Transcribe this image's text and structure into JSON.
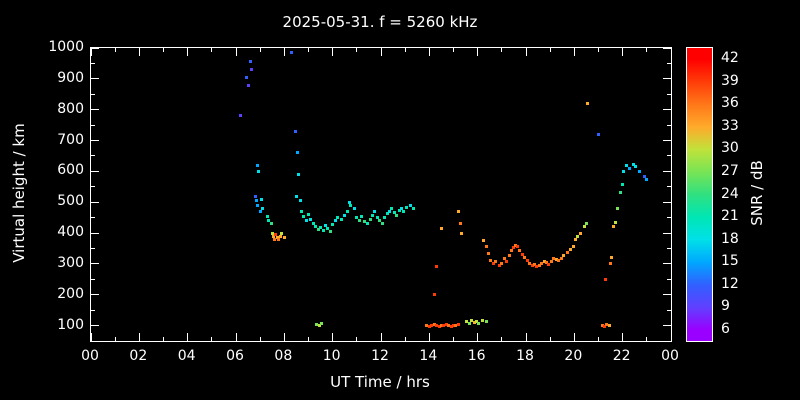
{
  "title": "2025-05-31. f = 5260 kHz",
  "chart_data": {
    "type": "scatter",
    "title": "2025-05-31. f = 5260 kHz",
    "xlabel": "UT Time / hrs",
    "ylabel": "Virtual height / km",
    "colorbar_label": "SNR / dB",
    "xlim": [
      0,
      24
    ],
    "ylim": [
      50,
      1000
    ],
    "grid": false,
    "background": "#000000",
    "xticks": {
      "values": [
        0,
        2,
        4,
        6,
        8,
        10,
        12,
        14,
        16,
        18,
        20,
        22,
        24
      ],
      "labels": [
        "00",
        "02",
        "04",
        "06",
        "08",
        "10",
        "12",
        "14",
        "16",
        "18",
        "20",
        "22",
        "00"
      ]
    },
    "yticks": {
      "values": [
        100,
        200,
        300,
        400,
        500,
        600,
        700,
        800,
        900,
        1000
      ],
      "labels": [
        "100",
        "200",
        "300",
        "400",
        "500",
        "600",
        "700",
        "800",
        "900",
        "1000"
      ]
    },
    "colorbar": {
      "range": [
        4.5,
        43.5
      ],
      "tick_values": [
        42,
        39,
        36,
        33,
        30,
        27,
        24,
        21,
        18,
        15,
        12,
        9,
        6
      ],
      "stops": {
        "6": "#9900ff",
        "9": "#6040ff",
        "12": "#3060ff",
        "15": "#00a8ff",
        "18": "#00e0e8",
        "21": "#00e6b4",
        "24": "#30e080",
        "27": "#78e455",
        "30": "#c0e23a",
        "33": "#ffaa2a",
        "36": "#ff7718",
        "39": "#ff3c08",
        "42": "#ff0000"
      }
    },
    "points": [
      [
        6.2,
        780,
        9
      ],
      [
        6.45,
        905,
        12
      ],
      [
        6.5,
        880,
        9
      ],
      [
        6.6,
        955,
        12
      ],
      [
        6.65,
        930,
        9
      ],
      [
        6.9,
        620,
        15
      ],
      [
        6.95,
        600,
        18
      ],
      [
        6.8,
        520,
        12
      ],
      [
        6.85,
        505,
        15
      ],
      [
        6.9,
        490,
        15
      ],
      [
        7.0,
        470,
        15
      ],
      [
        7.05,
        510,
        18
      ],
      [
        7.1,
        480,
        18
      ],
      [
        7.3,
        455,
        21
      ],
      [
        7.35,
        440,
        21
      ],
      [
        7.45,
        430,
        24
      ],
      [
        7.5,
        400,
        30
      ],
      [
        7.55,
        390,
        33
      ],
      [
        7.6,
        380,
        36
      ],
      [
        7.65,
        395,
        39
      ],
      [
        7.7,
        385,
        33
      ],
      [
        7.75,
        380,
        36
      ],
      [
        7.85,
        390,
        33
      ],
      [
        7.9,
        400,
        30
      ],
      [
        8.0,
        385,
        33
      ],
      [
        8.3,
        985,
        12
      ],
      [
        8.45,
        730,
        12
      ],
      [
        8.55,
        660,
        15
      ],
      [
        8.6,
        590,
        18
      ],
      [
        8.5,
        520,
        18
      ],
      [
        8.65,
        505,
        18
      ],
      [
        8.7,
        470,
        21
      ],
      [
        8.8,
        455,
        21
      ],
      [
        8.9,
        440,
        18
      ],
      [
        9.0,
        460,
        21
      ],
      [
        9.1,
        445,
        18
      ],
      [
        9.2,
        430,
        21
      ],
      [
        9.3,
        420,
        21
      ],
      [
        9.4,
        410,
        24
      ],
      [
        9.5,
        418,
        21
      ],
      [
        9.6,
        408,
        21
      ],
      [
        9.7,
        425,
        18
      ],
      [
        9.8,
        415,
        21
      ],
      [
        9.9,
        405,
        24
      ],
      [
        10.0,
        428,
        21
      ],
      [
        10.1,
        440,
        18
      ],
      [
        10.2,
        452,
        21
      ],
      [
        10.35,
        445,
        21
      ],
      [
        10.5,
        458,
        18
      ],
      [
        10.6,
        470,
        21
      ],
      [
        10.7,
        498,
        18
      ],
      [
        10.75,
        488,
        21
      ],
      [
        10.9,
        478,
        18
      ],
      [
        11.0,
        452,
        21
      ],
      [
        11.1,
        440,
        24
      ],
      [
        11.2,
        455,
        21
      ],
      [
        11.3,
        438,
        24
      ],
      [
        11.45,
        430,
        21
      ],
      [
        11.55,
        445,
        24
      ],
      [
        11.65,
        458,
        21
      ],
      [
        11.75,
        470,
        18
      ],
      [
        11.85,
        452,
        21
      ],
      [
        11.95,
        440,
        24
      ],
      [
        12.05,
        432,
        24
      ],
      [
        12.15,
        450,
        21
      ],
      [
        12.25,
        462,
        21
      ],
      [
        12.35,
        470,
        18
      ],
      [
        12.45,
        478,
        21
      ],
      [
        12.55,
        468,
        21
      ],
      [
        12.65,
        458,
        24
      ],
      [
        12.75,
        473,
        21
      ],
      [
        12.85,
        480,
        18
      ],
      [
        12.95,
        470,
        21
      ],
      [
        13.05,
        483,
        21
      ],
      [
        13.2,
        490,
        18
      ],
      [
        13.35,
        480,
        21
      ],
      [
        9.35,
        105,
        27
      ],
      [
        9.45,
        100,
        30
      ],
      [
        9.55,
        108,
        27
      ],
      [
        13.9,
        100,
        36
      ],
      [
        14.0,
        98,
        39
      ],
      [
        14.1,
        100,
        39
      ],
      [
        14.2,
        102,
        36
      ],
      [
        14.3,
        100,
        39
      ],
      [
        14.4,
        98,
        39
      ],
      [
        14.5,
        100,
        36
      ],
      [
        14.6,
        100,
        39
      ],
      [
        14.7,
        102,
        39
      ],
      [
        14.8,
        100,
        36
      ],
      [
        14.9,
        98,
        39
      ],
      [
        15.0,
        100,
        39
      ],
      [
        15.1,
        100,
        36
      ],
      [
        15.2,
        105,
        39
      ],
      [
        14.2,
        200,
        39
      ],
      [
        14.3,
        290,
        39
      ],
      [
        14.5,
        415,
        33
      ],
      [
        15.2,
        470,
        33
      ],
      [
        15.3,
        430,
        36
      ],
      [
        15.35,
        400,
        33
      ],
      [
        15.55,
        112,
        30
      ],
      [
        15.65,
        108,
        27
      ],
      [
        15.75,
        115,
        30
      ],
      [
        15.85,
        110,
        33
      ],
      [
        15.95,
        112,
        30
      ],
      [
        16.05,
        108,
        27
      ],
      [
        16.2,
        115,
        30
      ],
      [
        16.35,
        112,
        27
      ],
      [
        16.25,
        375,
        33
      ],
      [
        16.35,
        355,
        36
      ],
      [
        16.45,
        335,
        36
      ],
      [
        16.55,
        310,
        36
      ],
      [
        16.65,
        300,
        39
      ],
      [
        16.75,
        308,
        36
      ],
      [
        16.9,
        295,
        39
      ],
      [
        17.0,
        300,
        36
      ],
      [
        17.1,
        318,
        36
      ],
      [
        17.2,
        308,
        39
      ],
      [
        17.3,
        328,
        36
      ],
      [
        17.4,
        342,
        36
      ],
      [
        17.5,
        352,
        39
      ],
      [
        17.55,
        360,
        36
      ],
      [
        17.65,
        355,
        39
      ],
      [
        17.75,
        342,
        36
      ],
      [
        17.85,
        330,
        39
      ],
      [
        17.95,
        320,
        36
      ],
      [
        18.05,
        312,
        39
      ],
      [
        18.15,
        300,
        36
      ],
      [
        18.25,
        295,
        39
      ],
      [
        18.35,
        298,
        36
      ],
      [
        18.45,
        290,
        39
      ],
      [
        18.55,
        294,
        36
      ],
      [
        18.65,
        300,
        36
      ],
      [
        18.75,
        308,
        33
      ],
      [
        18.85,
        304,
        36
      ],
      [
        18.95,
        298,
        39
      ],
      [
        19.05,
        308,
        36
      ],
      [
        19.15,
        318,
        36
      ],
      [
        19.25,
        314,
        33
      ],
      [
        19.35,
        310,
        36
      ],
      [
        19.45,
        318,
        36
      ],
      [
        19.55,
        328,
        33
      ],
      [
        19.7,
        338,
        36
      ],
      [
        19.85,
        348,
        33
      ],
      [
        19.95,
        358,
        33
      ],
      [
        20.05,
        378,
        33
      ],
      [
        20.15,
        388,
        30
      ],
      [
        20.25,
        398,
        33
      ],
      [
        20.4,
        420,
        30
      ],
      [
        20.5,
        430,
        27
      ],
      [
        20.55,
        820,
        33
      ],
      [
        21.0,
        720,
        12
      ],
      [
        21.15,
        100,
        36
      ],
      [
        21.25,
        98,
        39
      ],
      [
        21.35,
        102,
        36
      ],
      [
        21.45,
        100,
        33
      ],
      [
        21.3,
        250,
        39
      ],
      [
        21.5,
        300,
        36
      ],
      [
        21.55,
        320,
        33
      ],
      [
        21.6,
        420,
        33
      ],
      [
        21.7,
        435,
        30
      ],
      [
        21.8,
        480,
        27
      ],
      [
        21.9,
        530,
        24
      ],
      [
        22.0,
        558,
        21
      ],
      [
        22.05,
        600,
        18
      ],
      [
        22.15,
        618,
        18
      ],
      [
        22.3,
        608,
        15
      ],
      [
        22.45,
        622,
        18
      ],
      [
        22.55,
        615,
        18
      ],
      [
        22.7,
        600,
        15
      ],
      [
        22.9,
        582,
        12
      ],
      [
        23.0,
        575,
        15
      ]
    ]
  }
}
